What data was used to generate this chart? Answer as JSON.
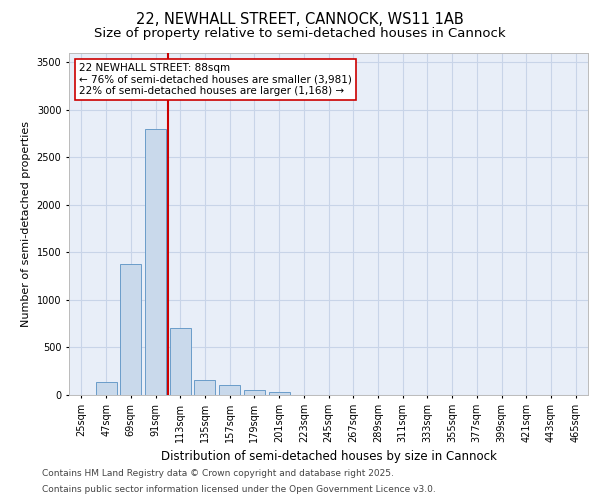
{
  "title_line1": "22, NEWHALL STREET, CANNOCK, WS11 1AB",
  "title_line2": "Size of property relative to semi-detached houses in Cannock",
  "xlabel": "Distribution of semi-detached houses by size in Cannock",
  "ylabel": "Number of semi-detached properties",
  "categories": [
    "25sqm",
    "47sqm",
    "69sqm",
    "91sqm",
    "113sqm",
    "135sqm",
    "157sqm",
    "179sqm",
    "201sqm",
    "223sqm",
    "245sqm",
    "267sqm",
    "289sqm",
    "311sqm",
    "333sqm",
    "355sqm",
    "377sqm",
    "399sqm",
    "421sqm",
    "443sqm",
    "465sqm"
  ],
  "values": [
    0,
    140,
    1380,
    2800,
    700,
    160,
    100,
    50,
    30,
    0,
    0,
    0,
    0,
    0,
    0,
    0,
    0,
    0,
    0,
    0,
    0
  ],
  "bar_color": "#c9d9eb",
  "bar_edgecolor": "#6a9cc9",
  "vline_color": "#cc0000",
  "annotation_text": "22 NEWHALL STREET: 88sqm\n← 76% of semi-detached houses are smaller (3,981)\n22% of semi-detached houses are larger (1,168) →",
  "annotation_box_edgecolor": "#cc0000",
  "ylim": [
    0,
    3600
  ],
  "yticks": [
    0,
    500,
    1000,
    1500,
    2000,
    2500,
    3000,
    3500
  ],
  "plot_bg_color": "#e8eef8",
  "grid_color": "#c8d4e8",
  "footer_line1": "Contains HM Land Registry data © Crown copyright and database right 2025.",
  "footer_line2": "Contains public sector information licensed under the Open Government Licence v3.0.",
  "title_fontsize": 10.5,
  "subtitle_fontsize": 9.5,
  "xlabel_fontsize": 8.5,
  "ylabel_fontsize": 8,
  "tick_fontsize": 7,
  "annotation_fontsize": 7.5,
  "footer_fontsize": 6.5
}
